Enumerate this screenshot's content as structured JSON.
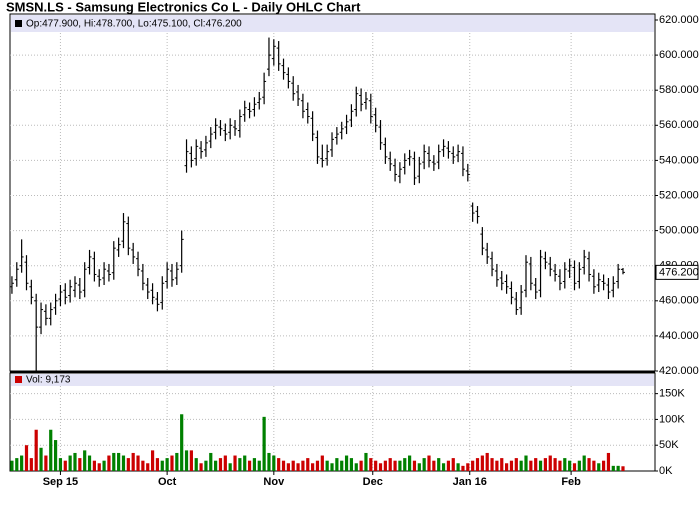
{
  "chart_data": [
    {
      "type": "ohlc",
      "title": "SMSN.LS - Samsung Electronics Co L - Daily OHLC Chart",
      "legend": "Op:477.900, Hi:478.700, Lo:475.100, Cl:476.200",
      "color": "#000000",
      "xlim": [
        -0.4,
        132.6
      ],
      "xticks": [
        {
          "value": 10,
          "label": "Sep 15"
        },
        {
          "value": 32,
          "label": "Oct"
        },
        {
          "value": 54,
          "label": "Nov"
        },
        {
          "value": 74.4,
          "label": "Dec"
        },
        {
          "value": 94.4,
          "label": "Jan 16"
        },
        {
          "value": 115.3,
          "label": "Feb"
        }
      ],
      "ylim": [
        420,
        620
      ],
      "yticks": [
        {
          "value": 420,
          "label": "420.000"
        },
        {
          "value": 440,
          "label": "440.000"
        },
        {
          "value": 460,
          "label": "460.000"
        },
        {
          "value": 480,
          "label": "480.000"
        },
        {
          "value": 500,
          "label": "500.000"
        },
        {
          "value": 520,
          "label": "520.000"
        },
        {
          "value": 540,
          "label": "540.000"
        },
        {
          "value": 560,
          "label": "560.000"
        },
        {
          "value": 580,
          "label": "580.000"
        },
        {
          "value": 600,
          "label": "600.000"
        },
        {
          "value": 620,
          "label": "620.000"
        }
      ],
      "grid": true,
      "open": [
        468,
        472,
        480,
        482,
        468,
        460,
        445,
        454,
        450,
        456,
        461,
        466,
        463,
        466,
        469,
        466,
        479,
        484,
        474,
        473,
        477,
        476,
        489,
        494,
        504,
        489,
        484,
        477,
        469,
        466,
        461,
        459,
        471,
        477,
        473,
        480,
        537,
        544,
        541,
        547,
        546,
        551,
        556,
        559,
        557,
        556,
        559,
        557,
        566,
        569,
        569,
        573,
        576,
        592,
        598,
        604,
        594,
        589,
        584,
        579,
        574,
        569,
        564,
        553,
        541,
        541,
        546,
        553,
        556,
        559,
        563,
        569,
        577,
        573,
        574,
        566,
        559,
        549,
        541,
        537,
        531,
        536,
        541,
        541,
        531,
        539,
        544,
        539,
        539,
        546,
        547,
        544,
        543,
        544,
        534,
        514,
        511,
        498,
        489,
        484,
        477,
        473,
        471,
        467,
        461,
        456,
        466,
        481,
        469,
        466,
        484,
        481,
        477,
        474,
        471,
        477,
        479,
        471,
        479,
        484,
        474,
        469,
        471,
        469,
        466,
        471,
        477.9
      ],
      "high": [
        474,
        482,
        495,
        486,
        472,
        464,
        459,
        458,
        459,
        464,
        469,
        470,
        472,
        474,
        473,
        482,
        489,
        488,
        478,
        482,
        481,
        494,
        496,
        510,
        508,
        493,
        488,
        481,
        473,
        470,
        465,
        474,
        482,
        481,
        482,
        500,
        552,
        548,
        552,
        551,
        554,
        559,
        564,
        563,
        561,
        564,
        563,
        569,
        574,
        573,
        576,
        579,
        590,
        610,
        609,
        608,
        598,
        593,
        588,
        583,
        578,
        573,
        568,
        557,
        549,
        549,
        556,
        559,
        562,
        566,
        572,
        582,
        581,
        579,
        578,
        570,
        563,
        553,
        545,
        541,
        539,
        544,
        546,
        545,
        542,
        549,
        548,
        543,
        549,
        552,
        551,
        548,
        549,
        548,
        538,
        516,
        514,
        502,
        493,
        488,
        481,
        477,
        475,
        471,
        465,
        469,
        486,
        485,
        473,
        489,
        488,
        485,
        481,
        478,
        482,
        484,
        483,
        482,
        489,
        488,
        478,
        476,
        475,
        473,
        474,
        481,
        478.7
      ],
      "low": [
        464,
        468,
        476,
        466,
        458,
        420,
        441,
        446,
        446,
        452,
        457,
        458,
        459,
        462,
        461,
        462,
        475,
        471,
        468,
        469,
        471,
        472,
        485,
        490,
        486,
        481,
        474,
        466,
        461,
        458,
        454,
        455,
        467,
        468,
        469,
        476,
        533,
        536,
        537,
        541,
        542,
        547,
        552,
        554,
        551,
        552,
        554,
        553,
        562,
        564,
        565,
        569,
        572,
        588,
        594,
        591,
        586,
        581,
        574,
        571,
        564,
        561,
        551,
        538,
        536,
        537,
        542,
        549,
        552,
        555,
        559,
        565,
        568,
        569,
        561,
        556,
        546,
        538,
        534,
        528,
        527,
        532,
        537,
        526,
        527,
        535,
        536,
        534,
        535,
        542,
        541,
        538,
        539,
        531,
        528,
        505,
        504,
        486,
        481,
        474,
        468,
        466,
        464,
        458,
        452,
        452,
        462,
        466,
        461,
        462,
        478,
        474,
        471,
        466,
        467,
        473,
        466,
        467,
        475,
        471,
        464,
        465,
        466,
        461,
        462,
        467,
        475.1
      ],
      "close": [
        470,
        478,
        485,
        470,
        462,
        445,
        455,
        450,
        455,
        460,
        465,
        462,
        468,
        470,
        465,
        478,
        485,
        475,
        472,
        478,
        475,
        490,
        492,
        505,
        490,
        485,
        478,
        470,
        465,
        462,
        458,
        470,
        478,
        472,
        478,
        495,
        545,
        540,
        548,
        545,
        550,
        555,
        560,
        558,
        555,
        560,
        558,
        565,
        570,
        568,
        572,
        575,
        585,
        600,
        605,
        595,
        590,
        585,
        578,
        575,
        568,
        565,
        555,
        542,
        540,
        545,
        552,
        555,
        558,
        562,
        568,
        578,
        572,
        575,
        565,
        560,
        550,
        542,
        538,
        532,
        535,
        540,
        542,
        530,
        538,
        545,
        540,
        538,
        545,
        548,
        545,
        542,
        545,
        535,
        532,
        510,
        508,
        490,
        485,
        478,
        472,
        470,
        468,
        462,
        455,
        465,
        482,
        470,
        465,
        485,
        482,
        478,
        475,
        470,
        478,
        480,
        470,
        478,
        485,
        475,
        468,
        472,
        470,
        465,
        470,
        478,
        476.2
      ],
      "last_label": "476.200"
    },
    {
      "type": "bar",
      "legend": "Vol: 9,173",
      "up_color": "#008000",
      "down_color": "#cc0000",
      "ylim": [
        0,
        190000
      ],
      "yticks": [
        {
          "value": 0,
          "label": "0K"
        },
        {
          "value": 50000,
          "label": "50K"
        },
        {
          "value": 100000,
          "label": "100K"
        },
        {
          "value": 150000,
          "label": "150K"
        }
      ],
      "values": [
        20000,
        25000,
        30000,
        50000,
        25000,
        80000,
        45000,
        30000,
        80000,
        60000,
        25000,
        20000,
        30000,
        35000,
        25000,
        40000,
        30000,
        20000,
        15000,
        20000,
        30000,
        35000,
        35000,
        30000,
        25000,
        35000,
        30000,
        20000,
        15000,
        40000,
        25000,
        20000,
        25000,
        30000,
        35000,
        110000,
        40000,
        40000,
        25000,
        15000,
        20000,
        35000,
        20000,
        25000,
        30000,
        15000,
        30000,
        25000,
        30000,
        20000,
        25000,
        20000,
        105000,
        35000,
        30000,
        25000,
        20000,
        15000,
        20000,
        15000,
        20000,
        25000,
        15000,
        20000,
        30000,
        20000,
        15000,
        25000,
        20000,
        30000,
        25000,
        15000,
        20000,
        35000,
        25000,
        20000,
        15000,
        20000,
        25000,
        20000,
        20000,
        25000,
        30000,
        20000,
        15000,
        25000,
        30000,
        20000,
        25000,
        15000,
        20000,
        25000,
        15000,
        10000,
        15000,
        20000,
        25000,
        30000,
        35000,
        25000,
        20000,
        25000,
        15000,
        20000,
        25000,
        20000,
        30000,
        20000,
        25000,
        20000,
        25000,
        30000,
        25000,
        20000,
        25000,
        20000,
        15000,
        20000,
        30000,
        25000,
        20000,
        15000,
        20000,
        35000,
        10000,
        10000,
        9173
      ]
    }
  ]
}
